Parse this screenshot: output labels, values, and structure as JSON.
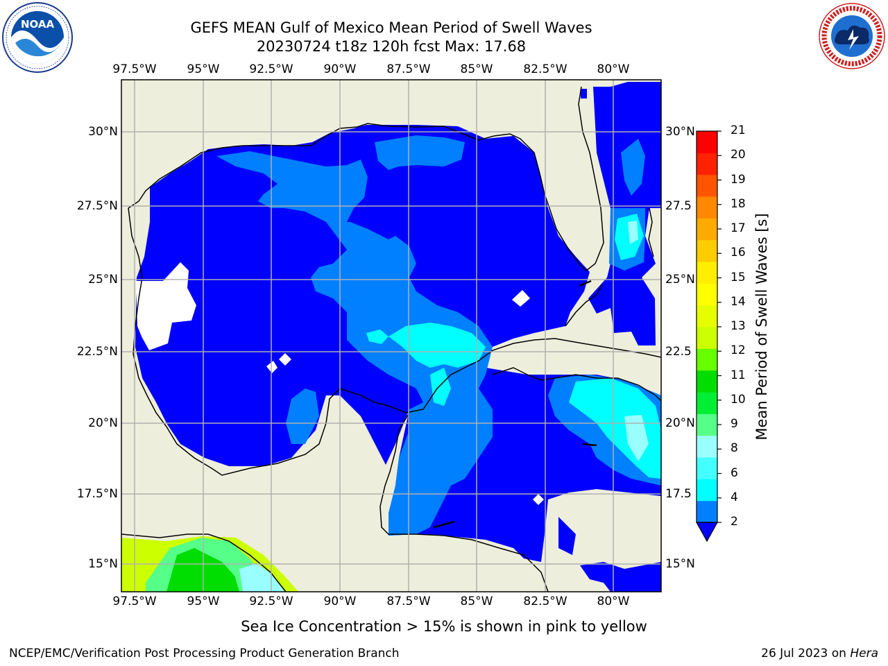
{
  "header": {
    "title_line1": "GEFS MEAN Gulf of Mexico Mean Period of Swell Waves",
    "title_line2": "20230724 t18z 120h fcst   Max: 17.68"
  },
  "logos": {
    "noaa_text": "NOAA",
    "nws_text": "NATIONAL WEATHER SERVICE"
  },
  "map": {
    "lon_labels": [
      "97.5°W",
      "95°W",
      "92.5°W",
      "90°W",
      "87.5°W",
      "85°W",
      "82.5°W",
      "80°W"
    ],
    "lat_labels_left": [
      "30°N",
      "27.5°N",
      "25°N",
      "22.5°N",
      "20°N",
      "17.5°N",
      "15°N"
    ],
    "lat_labels_right": [
      "30°N",
      "27.5",
      "25°N",
      "22.5",
      "20°N",
      "17.5",
      "15°N"
    ],
    "colors": {
      "land": "#eeeedc",
      "grid": "#b0b0b0",
      "coast": "#000000",
      "band_2": "#0000ff",
      "band_4": "#0080ff",
      "band_6": "#00ffff",
      "band_12": "#ccff00"
    }
  },
  "colorbar": {
    "label": "Mean Period of Swell Waves [s]",
    "ticks": [
      "21",
      "20",
      "19",
      "18",
      "17",
      "16",
      "15",
      "14",
      "13",
      "12",
      "11",
      "10",
      "9",
      "8",
      "6",
      "4",
      "2"
    ],
    "colors": [
      "#0080ff",
      "#00ffff",
      "#44ffff",
      "#99ffff",
      "#55ff88",
      "#00ee33",
      "#00dd00",
      "#66ff00",
      "#ccff00",
      "#e6ff00",
      "#ffff00",
      "#ffee00",
      "#ffcc00",
      "#ffaa00",
      "#ff8800",
      "#ff5500",
      "#ff2200",
      "#ff0000"
    ],
    "extend_color": "#0000ff"
  },
  "caption": "Sea Ice Concentration > 15% is shown in pink to yellow",
  "footer": {
    "left": "NCEP/EMC/Verification Post Processing Product Generation Branch",
    "right_prefix": "26 Jul 2023 on ",
    "right_host": "Hera"
  }
}
